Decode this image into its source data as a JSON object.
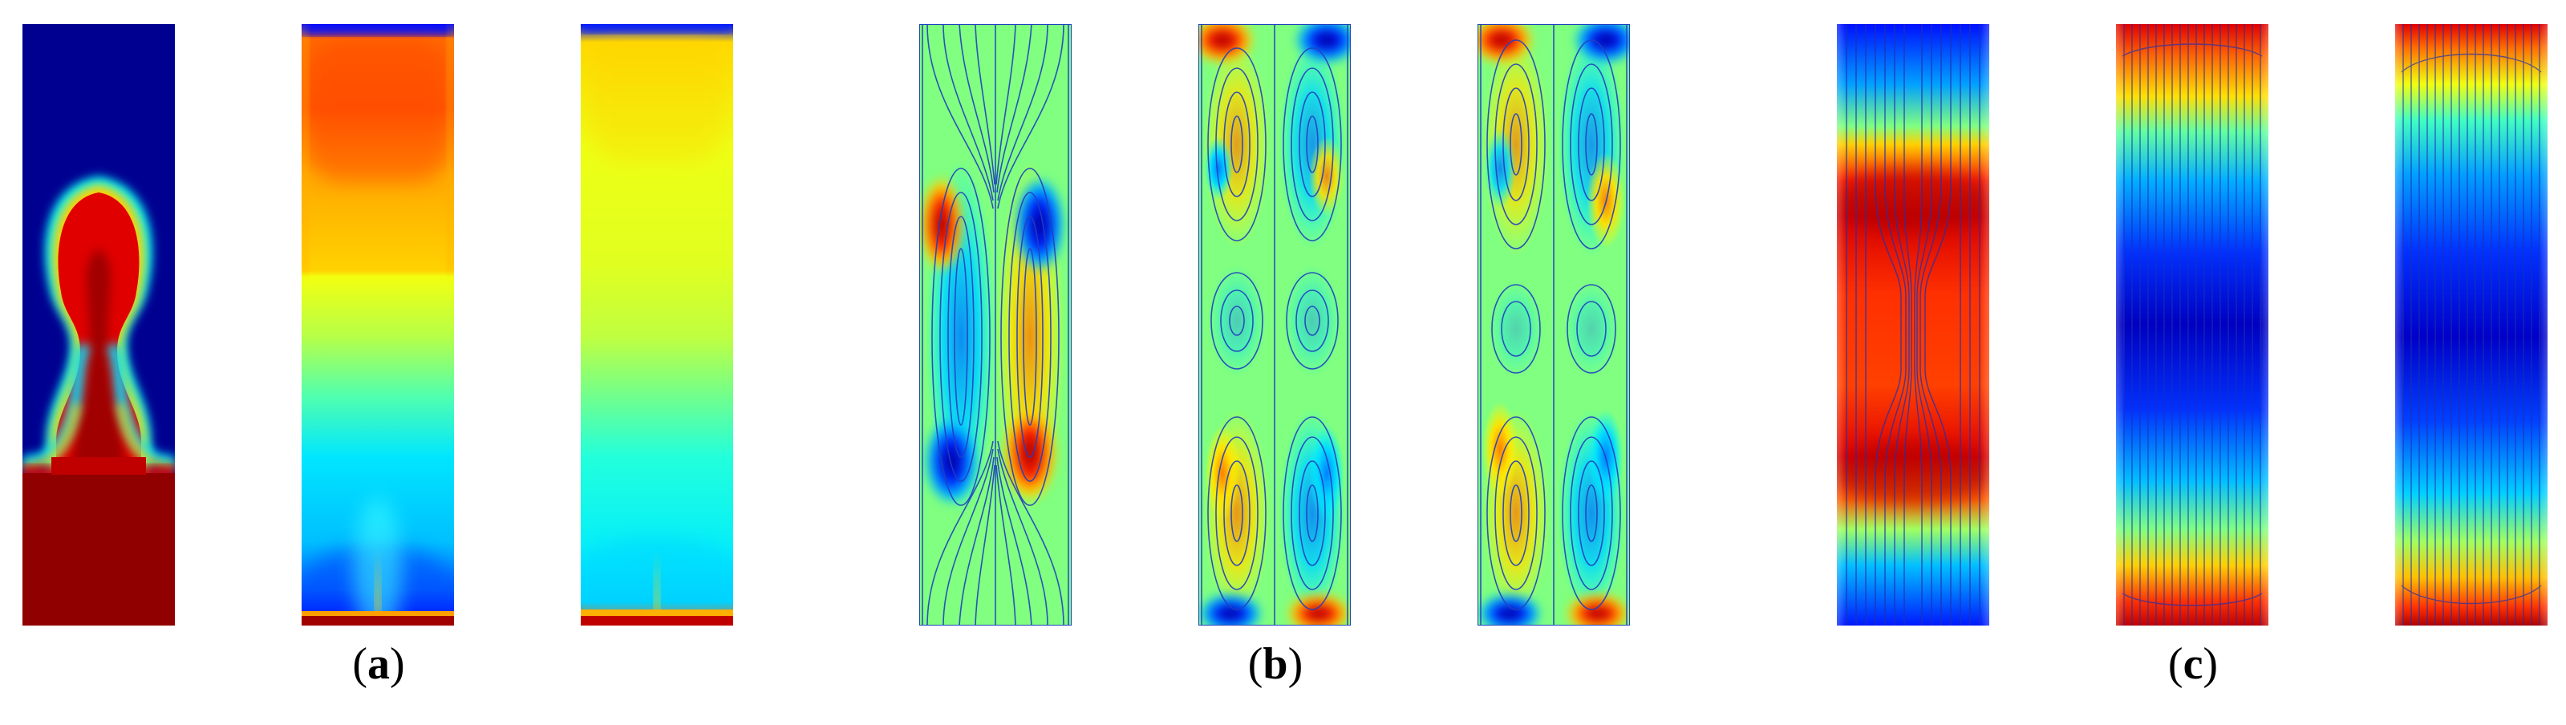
{
  "figure": {
    "groups": [
      {
        "id": "a",
        "caption": {
          "open": "(",
          "letter": "a",
          "close": ")"
        },
        "panels": [
          {
            "id": "a1",
            "kind": "plume-phase-field"
          },
          {
            "id": "a2",
            "kind": "temperature-stratified"
          },
          {
            "id": "a3",
            "kind": "concentration-stratified"
          }
        ]
      },
      {
        "id": "b",
        "caption": {
          "open": "(",
          "letter": "b",
          "close": ")"
        },
        "panels": [
          {
            "id": "b1",
            "kind": "vorticity-streamlines-two-cells"
          },
          {
            "id": "b2",
            "kind": "vorticity-streamlines-multi-cells"
          },
          {
            "id": "b3",
            "kind": "vorticity-streamlines-multi-cells"
          }
        ]
      },
      {
        "id": "c",
        "caption": {
          "open": "(",
          "letter": "c",
          "close": ")"
        },
        "panels": [
          {
            "id": "c1",
            "kind": "field-red-center-streamlines"
          },
          {
            "id": "c2",
            "kind": "field-blue-center-streamlines"
          },
          {
            "id": "c3",
            "kind": "field-blue-center-streamlines"
          }
        ]
      }
    ],
    "colormap": "jet"
  }
}
